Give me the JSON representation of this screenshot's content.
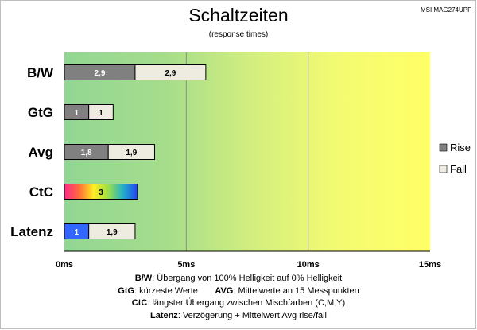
{
  "chart_data": {
    "type": "bar",
    "orientation": "horizontal",
    "stacked": true,
    "title": "Schaltzeiten",
    "subtitle": "(response times)",
    "model": "MSI MAG274UPF",
    "categories": [
      "B/W",
      "GtG",
      "Avg",
      "CtC",
      "Latenz"
    ],
    "series": [
      {
        "name": "Rise",
        "color": "#808080",
        "values": [
          2.9,
          1,
          1.8,
          3,
          1
        ],
        "labels": [
          "2,9",
          "1",
          "1,8",
          "3",
          "1"
        ]
      },
      {
        "name": "Fall",
        "color": "#eeece1",
        "values": [
          2.9,
          1,
          1.9,
          null,
          1.9
        ],
        "labels": [
          "2,9",
          "1",
          "1,9",
          "",
          "1,9"
        ]
      }
    ],
    "special_fills": {
      "CtC": "rainbow",
      "Latenz_rise": "#3366ff"
    },
    "xlim": [
      0,
      15
    ],
    "xticks": [
      "0ms",
      "5ms",
      "10ms",
      "15ms"
    ],
    "grid": true,
    "background": "green-to-yellow gradient",
    "legend_position": "right"
  },
  "notes": [
    {
      "key": "B/W",
      "text": ":  Übergang von 100% Helligkeit auf 0% Helligkeit"
    },
    {
      "key": "GtG",
      "text": ": kürzeste  Werte",
      "key2": "AVG",
      "text2": ": Mittelwerte  an 15 Messpunkten"
    },
    {
      "key": "CtC",
      "text": ": längster Übergang  zwischen Mischfarben  (C,M,Y)"
    },
    {
      "key": "Latenz",
      "text": ": Verzögerung  + Mittelwert Avg rise/fall"
    }
  ]
}
